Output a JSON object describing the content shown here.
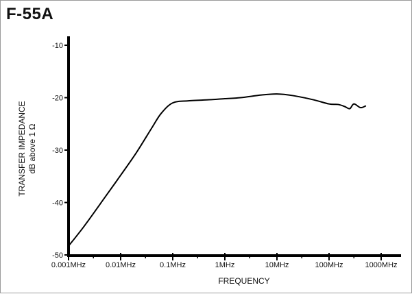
{
  "chart_data": {
    "type": "line",
    "title": "F-55A",
    "xlabel": "FREQUENCY",
    "ylabel_line1": "TRANSFER IMPEDANCE",
    "ylabel_line2": "dB above 1 Ω",
    "xscale": "log",
    "xlim": [
      0.001,
      1000
    ],
    "ylim": [
      -50,
      -8
    ],
    "x_ticks": [
      0.001,
      0.01,
      0.1,
      1,
      10,
      100,
      1000
    ],
    "x_tick_labels": [
      "0.001MHz",
      "0.01MHz",
      "0.1MHz",
      "1MHz",
      "10MHz",
      "100MHz",
      "1000MHz"
    ],
    "y_ticks": [
      -10,
      -20,
      -30,
      -40,
      -50
    ],
    "y_tick_labels": [
      "-10",
      "-20",
      "-30",
      "-40",
      "-50"
    ],
    "grid": false,
    "series": [
      {
        "x": [
          0.001,
          0.002,
          0.005,
          0.01,
          0.02,
          0.04,
          0.06,
          0.1,
          0.2,
          0.5,
          1,
          2,
          5,
          10,
          20,
          50,
          100,
          150,
          200,
          250,
          300,
          400,
          500
        ],
        "y": [
          -48.3,
          -44.5,
          -39.0,
          -34.8,
          -30.5,
          -25.7,
          -23.0,
          -21.0,
          -20.6,
          -20.4,
          -20.2,
          -20.0,
          -19.5,
          -19.3,
          -19.6,
          -20.4,
          -21.2,
          -21.3,
          -21.7,
          -22.1,
          -21.2,
          -21.9,
          -21.6
        ]
      }
    ]
  }
}
